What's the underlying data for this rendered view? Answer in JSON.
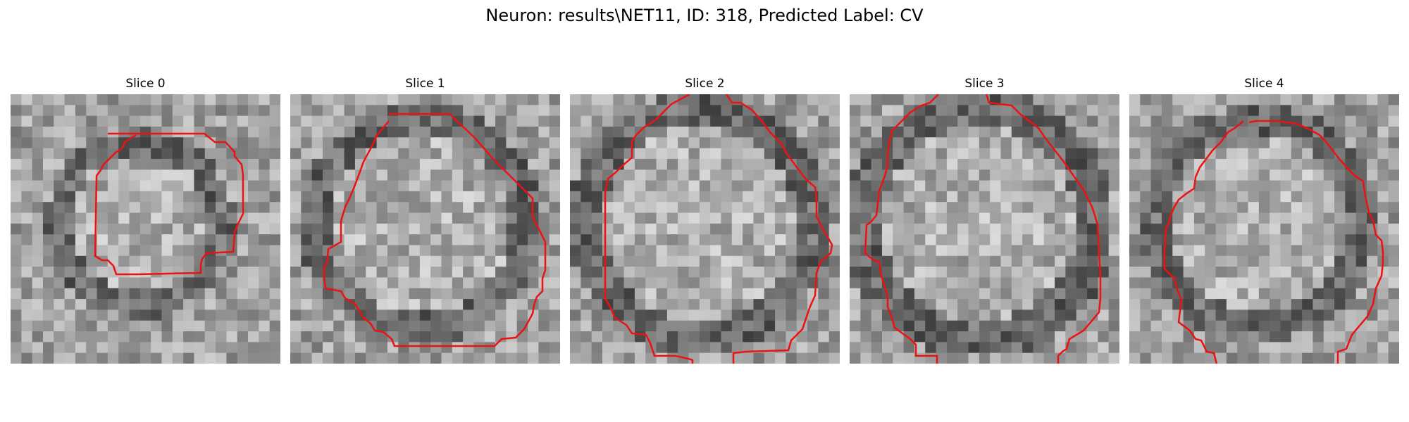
{
  "title": "Neuron: results\\NET11, ID: 318, Predicted Label: CV",
  "panels": [
    {
      "label": "Slice 0"
    },
    {
      "label": "Slice 1"
    },
    {
      "label": "Slice 2"
    },
    {
      "label": "Slice 3"
    },
    {
      "label": "Slice 4"
    }
  ],
  "colors": {
    "contour": "#ee1111",
    "background": "#ffffff"
  }
}
